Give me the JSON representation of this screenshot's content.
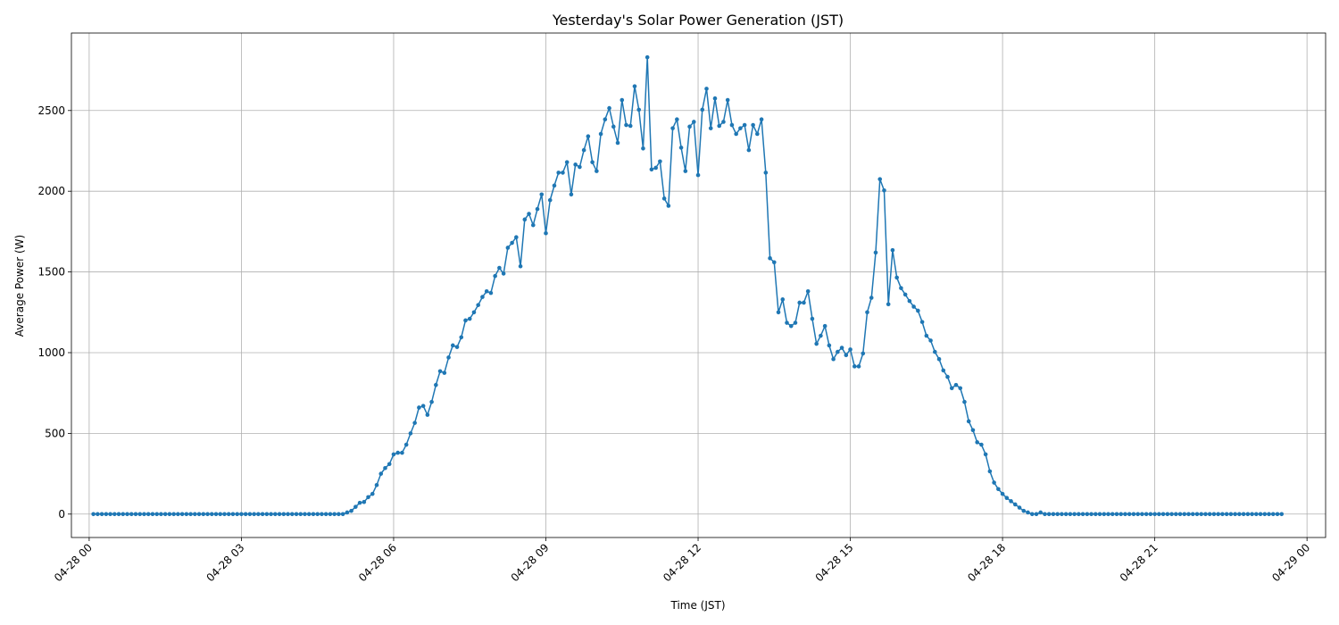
{
  "chart_data": {
    "type": "line",
    "title": "Yesterday's Solar Power Generation (JST)",
    "xlabel": "Time (JST)",
    "ylabel": "Average Power (W)",
    "x_start": "04-28 00:05",
    "x_interval_minutes": 5,
    "xlim": [
      "04-27 23:39",
      "04-29 00:22"
    ],
    "ylim": [
      -145,
      2980
    ],
    "x_ticks": [
      "04-28 00",
      "04-28 03",
      "04-28 06",
      "04-28 09",
      "04-28 12",
      "04-28 15",
      "04-28 18",
      "04-28 21",
      "04-29 00"
    ],
    "y_ticks": [
      0,
      500,
      1000,
      1500,
      2000,
      2500
    ],
    "grid": true,
    "line_color": "#1f77b4",
    "marker": "circle",
    "series": [
      {
        "values": [
          0,
          0,
          0,
          0,
          0,
          0,
          0,
          0,
          0,
          0,
          0,
          0,
          0,
          0,
          0,
          0,
          0,
          0,
          0,
          0,
          0,
          0,
          0,
          0,
          0,
          0,
          0,
          0,
          0,
          0,
          0,
          0,
          0,
          0,
          0,
          0,
          0,
          0,
          0,
          0,
          0,
          0,
          0,
          0,
          0,
          0,
          0,
          0,
          0,
          0,
          0,
          0,
          0,
          0,
          0,
          0,
          0,
          0,
          0,
          0,
          10,
          20,
          45,
          70,
          75,
          105,
          125,
          180,
          250,
          285,
          310,
          370,
          380,
          380,
          430,
          500,
          565,
          660,
          670,
          615,
          695,
          800,
          885,
          875,
          970,
          1045,
          1035,
          1095,
          1200,
          1210,
          1250,
          1295,
          1345,
          1380,
          1370,
          1475,
          1525,
          1490,
          1650,
          1680,
          1715,
          1535,
          1825,
          1860,
          1790,
          1890,
          1980,
          1740,
          1945,
          2035,
          2115,
          2115,
          2180,
          1980,
          2165,
          2150,
          2255,
          2340,
          2180,
          2125,
          2355,
          2445,
          2515,
          2400,
          2300,
          2565,
          2410,
          2405,
          2650,
          2505,
          2265,
          2830,
          2135,
          2145,
          2185,
          1955,
          1910,
          2390,
          2445,
          2270,
          2125,
          2400,
          2430,
          2100,
          2505,
          2635,
          2390,
          2575,
          2405,
          2430,
          2565,
          2410,
          2355,
          2390,
          2410,
          2255,
          2410,
          2355,
          2445,
          2115,
          1585,
          1560,
          1250,
          1330,
          1185,
          1165,
          1185,
          1310,
          1310,
          1380,
          1210,
          1055,
          1105,
          1165,
          1045,
          960,
          1005,
          1030,
          985,
          1020,
          915,
          915,
          995,
          1250,
          1340,
          1620,
          2075,
          2005,
          1300,
          1635,
          1465,
          1400,
          1360,
          1320,
          1285,
          1260,
          1190,
          1105,
          1075,
          1005,
          960,
          890,
          850,
          780,
          800,
          780,
          695,
          575,
          520,
          445,
          430,
          370,
          265,
          195,
          155,
          125,
          100,
          80,
          60,
          40,
          20,
          10,
          0,
          0,
          10,
          0,
          0,
          0,
          0,
          0,
          0,
          0,
          0,
          0,
          0,
          0,
          0,
          0,
          0,
          0,
          0,
          0,
          0,
          0,
          0,
          0,
          0,
          0,
          0,
          0,
          0,
          0,
          0,
          0,
          0,
          0,
          0,
          0,
          0,
          0,
          0,
          0,
          0,
          0,
          0,
          0,
          0,
          0,
          0,
          0,
          0,
          0,
          0,
          0,
          0,
          0,
          0,
          0,
          0,
          0,
          0,
          0
        ]
      }
    ]
  }
}
